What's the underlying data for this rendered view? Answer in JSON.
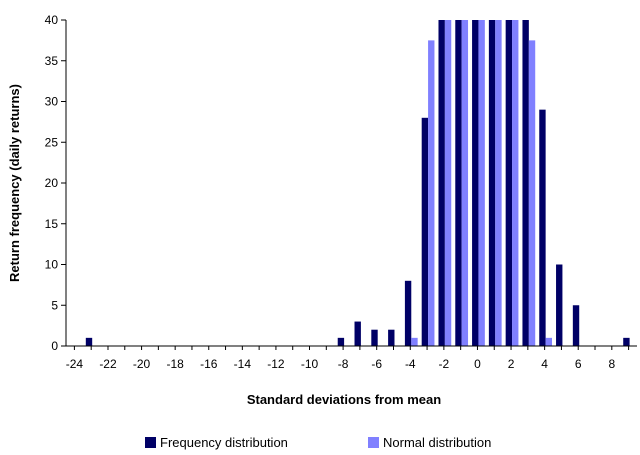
{
  "chart_data": {
    "type": "bar",
    "xlabel": "Standard deviations from mean",
    "ylabel": "Return frequency (daily returns)",
    "ylim": [
      0,
      40
    ],
    "yticks": [
      0,
      5,
      10,
      15,
      20,
      25,
      30,
      35,
      40
    ],
    "xlim": [
      -24.5,
      9.5
    ],
    "xticks": [
      -24,
      -22,
      -20,
      -18,
      -16,
      -14,
      -12,
      -10,
      -8,
      -6,
      -4,
      -2,
      0,
      2,
      4,
      6,
      8
    ],
    "grid": {
      "horizontal": false,
      "vertical": false
    },
    "legend": {
      "placement": "bottom"
    },
    "colors": {
      "freq": "#000066",
      "normal": "#8080ff"
    },
    "series": [
      {
        "name": "Frequency distribution",
        "x": [
          -23,
          -8,
          -7,
          -6,
          -5,
          -4,
          -3,
          -2,
          -1,
          0,
          1,
          2,
          3,
          4,
          5,
          6,
          9
        ],
        "values": [
          1,
          1,
          3,
          2,
          2,
          8,
          28,
          40,
          40,
          40,
          40,
          40,
          40,
          29,
          10,
          5,
          1
        ]
      },
      {
        "name": "Normal distribution",
        "x": [
          -4,
          -3,
          -2,
          -1,
          0,
          1,
          2,
          3,
          4
        ],
        "values": [
          1,
          37.5,
          40,
          40,
          40,
          40,
          40,
          37.5,
          1
        ]
      }
    ]
  }
}
